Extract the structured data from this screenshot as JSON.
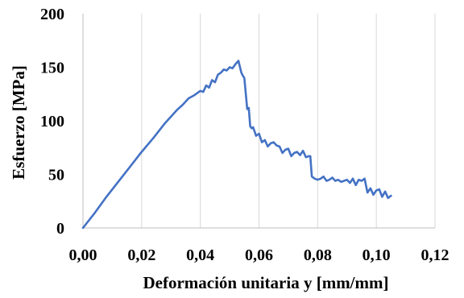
{
  "chart_data": {
    "type": "line",
    "title": "",
    "xlabel": "Deformación unitaria y [mm/mm]",
    "ylabel": "Esfuerzo [MPa]",
    "xlim": [
      0,
      0.12
    ],
    "ylim": [
      0,
      200
    ],
    "x_ticks": [
      "0,00",
      "0,02",
      "0,04",
      "0,06",
      "0,08",
      "0,10",
      "0,12"
    ],
    "y_ticks": [
      "0",
      "50",
      "100",
      "150",
      "200"
    ],
    "grid": {
      "vertical": true,
      "horizontal": false
    },
    "legend": "none",
    "series": [
      {
        "color": "#4472c4",
        "x": [
          0.0,
          0.004,
          0.008,
          0.012,
          0.016,
          0.02,
          0.024,
          0.028,
          0.03,
          0.032,
          0.034,
          0.036,
          0.038,
          0.04,
          0.041,
          0.042,
          0.043,
          0.044,
          0.045,
          0.046,
          0.047,
          0.048,
          0.049,
          0.05,
          0.051,
          0.052,
          0.053,
          0.054,
          0.0545,
          0.055,
          0.056,
          0.0565,
          0.057,
          0.0575,
          0.058,
          0.059,
          0.06,
          0.061,
          0.062,
          0.063,
          0.064,
          0.065,
          0.066,
          0.067,
          0.068,
          0.069,
          0.07,
          0.071,
          0.072,
          0.073,
          0.074,
          0.075,
          0.076,
          0.077,
          0.0775,
          0.078,
          0.079,
          0.08,
          0.081,
          0.082,
          0.083,
          0.084,
          0.085,
          0.086,
          0.087,
          0.088,
          0.089,
          0.09,
          0.091,
          0.092,
          0.093,
          0.094,
          0.095,
          0.096,
          0.097,
          0.098,
          0.099,
          0.1,
          0.101,
          0.102,
          0.103,
          0.104,
          0.105
        ],
        "y": [
          0,
          14,
          29,
          43,
          57,
          71,
          84,
          98,
          104,
          110,
          115,
          121,
          124,
          128,
          127,
          133,
          131,
          138,
          136,
          143,
          145,
          148,
          147,
          150,
          149,
          153,
          156,
          145,
          142,
          140,
          111,
          112,
          95,
          93,
          94,
          86,
          88,
          80,
          82,
          76,
          79,
          80,
          77,
          76,
          70,
          73,
          74,
          67,
          70,
          71,
          68,
          72,
          66,
          67,
          67,
          48,
          46,
          45,
          46,
          48,
          44,
          45,
          47,
          44,
          45,
          43,
          44,
          45,
          42,
          46,
          40,
          45,
          44,
          46,
          33,
          37,
          31,
          35,
          36,
          29,
          34,
          28,
          30
        ]
      }
    ]
  }
}
